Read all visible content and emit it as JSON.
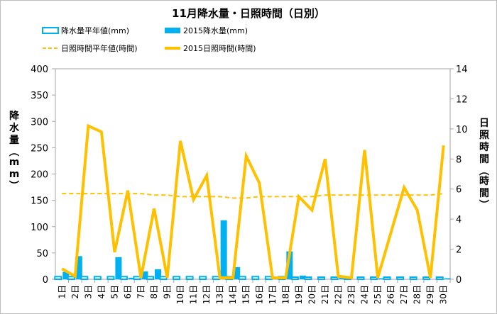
{
  "chart_data": {
    "type": "bar",
    "title": "11月降水量・日照時間（日別）",
    "categories": [
      "1日",
      "2日",
      "3日",
      "4日",
      "5日",
      "6日",
      "7日",
      "8日",
      "9日",
      "10日",
      "11日",
      "12日",
      "13日",
      "14日",
      "15日",
      "16日",
      "17日",
      "18日",
      "19日",
      "20日",
      "21日",
      "22日",
      "23日",
      "24日",
      "25日",
      "26日",
      "27日",
      "28日",
      "29日",
      "30日"
    ],
    "ylabel_left": "降水量（mm）",
    "ylabel_right": "日照時間（時間）",
    "ylim_left": [
      0,
      400
    ],
    "yticks_left": [
      "0",
      "50",
      "100",
      "150",
      "200",
      "250",
      "300",
      "350",
      "400"
    ],
    "ylim_right": [
      0,
      14
    ],
    "yticks_right": [
      "0",
      "2",
      "4",
      "6",
      "8",
      "10",
      "12",
      "14"
    ],
    "legend": {
      "normal_precip": "降水量平年値(mm)",
      "precip_2015": "2015降水量(mm)",
      "normal_sunshine": "日照時間平年値(時間)",
      "sunshine_2015": "2015日照時間(時間)"
    },
    "series": [
      {
        "name": "降水量平年値(mm)",
        "axis": "left",
        "kind": "bar",
        "color": "#00b0f0",
        "style": "outline",
        "values": [
          5,
          5,
          5,
          5,
          5,
          5,
          5,
          5,
          5,
          5,
          5,
          5,
          5,
          5,
          5,
          5,
          5,
          5,
          4,
          4,
          4,
          4,
          4,
          4,
          4,
          4,
          4,
          4,
          4,
          4
        ]
      },
      {
        "name": "2015降水量(mm)",
        "axis": "left",
        "kind": "bar",
        "color": "#00b0f0",
        "style": "filled",
        "values": [
          14,
          44,
          0,
          0,
          42,
          3,
          15,
          19,
          0,
          0,
          0,
          0,
          112,
          23,
          0,
          0,
          5,
          53,
          7,
          0,
          0,
          7,
          0,
          0,
          2,
          0,
          0,
          0,
          0,
          2
        ]
      },
      {
        "name": "日照時間平年値(時間)",
        "axis": "right",
        "kind": "line",
        "color": "#ffc000",
        "style": "dashed",
        "values": [
          5.7,
          5.7,
          5.7,
          5.7,
          5.7,
          5.7,
          5.7,
          5.6,
          5.6,
          5.5,
          5.5,
          5.5,
          5.5,
          5.4,
          5.4,
          5.5,
          5.5,
          5.5,
          5.5,
          5.5,
          5.6,
          5.6,
          5.6,
          5.6,
          5.6,
          5.6,
          5.6,
          5.6,
          5.6,
          5.7
        ]
      },
      {
        "name": "2015日照時間(時間)",
        "axis": "right",
        "kind": "line",
        "color": "#ffc000",
        "style": "solid",
        "values": [
          0.7,
          0.2,
          10.2,
          9.8,
          1.8,
          5.9,
          0.1,
          4.7,
          0.1,
          9.2,
          5.3,
          6.9,
          0.1,
          0.1,
          8.2,
          6.4,
          0.1,
          0.1,
          5.5,
          4.6,
          8.0,
          0.2,
          0.1,
          8.6,
          0.1,
          3.1,
          6.1,
          4.6,
          0.1,
          8.9
        ]
      }
    ]
  }
}
